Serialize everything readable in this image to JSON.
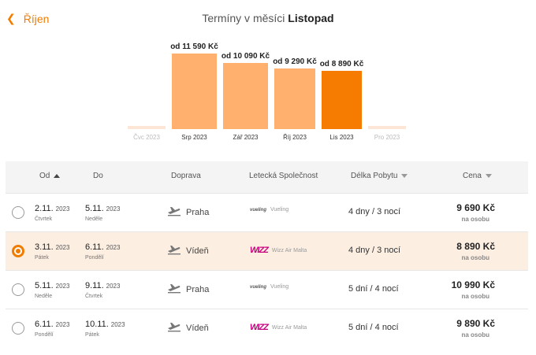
{
  "header": {
    "prev_month": "Říjen",
    "title_prefix": "Termíny v měsíci",
    "title_month": "Listopad"
  },
  "chart_data": {
    "type": "bar",
    "categories": [
      "Čvc 2023",
      "Srp 2023",
      "Zář 2023",
      "Říj 2023",
      "Lis 2023",
      "Pro 2023"
    ],
    "values": [
      null,
      11590,
      10090,
      9290,
      8890,
      null
    ],
    "price_labels": [
      "",
      "od 11 590 Kč",
      "od 10 090 Kč",
      "od 9 290 Kč",
      "od 8 890 Kč",
      ""
    ],
    "available": [
      false,
      true,
      true,
      true,
      true,
      false
    ],
    "selected_index": 4,
    "colors": {
      "bar": "#ffb06e",
      "selected": "#f57c00",
      "empty": "#fde6d6"
    }
  },
  "table": {
    "columns": {
      "od": "Od",
      "do": "Do",
      "doprava": "Doprava",
      "spolecnost": "Letecká Společnost",
      "delka": "Délka Pobytu",
      "cena": "Cena"
    },
    "rows": [
      {
        "from_date": "2.11.",
        "from_year": "2023",
        "from_day": "Čtvrtek",
        "to_date": "5.11.",
        "to_year": "2023",
        "to_day": "Neděle",
        "transport": "Praha",
        "airline_logo": "vueling",
        "airline": "Vueling",
        "stay_days": "4 dny",
        "stay_sep": " / ",
        "stay_nights": "3 nocí",
        "price": "9 690 Kč",
        "per": "na osobu",
        "selected": false
      },
      {
        "from_date": "3.11.",
        "from_year": "2023",
        "from_day": "Pátek",
        "to_date": "6.11.",
        "to_year": "2023",
        "to_day": "Pondělí",
        "transport": "Vídeň",
        "airline_logo": "wizz",
        "airline": "Wizz Air Malta",
        "stay_days": "4 dny",
        "stay_sep": " / ",
        "stay_nights": "3 nocí",
        "price": "8 890 Kč",
        "per": "na osobu",
        "selected": true
      },
      {
        "from_date": "5.11.",
        "from_year": "2023",
        "from_day": "Neděle",
        "to_date": "9.11.",
        "to_year": "2023",
        "to_day": "Čtvrtek",
        "transport": "Praha",
        "airline_logo": "vueling",
        "airline": "Vueling",
        "stay_days": "5 dní",
        "stay_sep": " / ",
        "stay_nights": "4 nocí",
        "price": "10 990 Kč",
        "per": "na osobu",
        "selected": false
      },
      {
        "from_date": "6.11.",
        "from_year": "2023",
        "from_day": "Pondělí",
        "to_date": "10.11.",
        "to_year": "2023",
        "to_day": "Pátek",
        "transport": "Vídeň",
        "airline_logo": "wizz",
        "airline": "Wizz Air Malta",
        "stay_days": "5 dní",
        "stay_sep": " / ",
        "stay_nights": "4 nocí",
        "price": "9 890 Kč",
        "per": "na osobu",
        "selected": false
      }
    ]
  }
}
